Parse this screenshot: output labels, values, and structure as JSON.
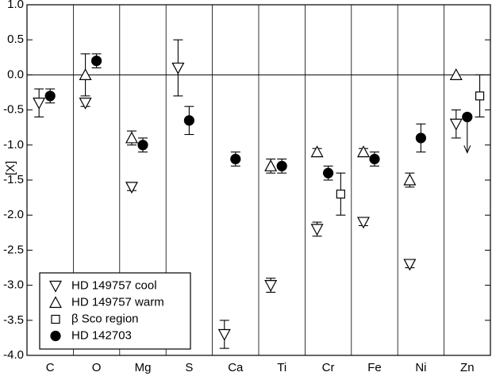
{
  "chart_data": {
    "type": "errorbar",
    "ylabel": "[X]",
    "categories": [
      "C",
      "O",
      "Mg",
      "S",
      "Ca",
      "Ti",
      "Cr",
      "Fe",
      "Ni",
      "Zn"
    ],
    "ylim": [
      -4,
      1
    ],
    "yticks": [
      {
        "value": 1,
        "label": "1.0"
      },
      0.5,
      {
        "value": 0,
        "label": "0.0"
      },
      -0.5,
      {
        "value": -1,
        "label": "-1.0"
      },
      -1.5,
      {
        "value": -2,
        "label": "-2.0"
      },
      -2.5,
      {
        "value": -3,
        "label": "-3.0"
      },
      -3.5,
      {
        "value": -4,
        "label": "-4.0"
      }
    ],
    "zero_line": true,
    "legend": "lower left",
    "series": [
      {
        "name": "HD 149757 cool",
        "marker": "triangle-down",
        "filled": false,
        "offset": -0.24,
        "values": [
          -0.4,
          -0.4,
          -1.6,
          0.1,
          -3.7,
          -3.0,
          -2.2,
          -2.1,
          -2.7,
          -0.7
        ],
        "errors": [
          0.2,
          0.05,
          0.05,
          0.4,
          0.2,
          0.1,
          0.1,
          0.05,
          0.05,
          0.2
        ]
      },
      {
        "name": "HD 149757 warm",
        "marker": "triangle-up",
        "filled": false,
        "offset": -0.24,
        "values": [
          null,
          0.0,
          -0.9,
          null,
          null,
          -1.3,
          -1.1,
          -1.1,
          -1.5,
          0.0
        ],
        "errors": [
          null,
          0.3,
          0.1,
          null,
          null,
          0.1,
          0.05,
          0.05,
          0.1,
          null
        ]
      },
      {
        "name": "β Sco region",
        "marker": "square",
        "filled": false,
        "offset": 0.27,
        "values": [
          null,
          null,
          null,
          null,
          null,
          null,
          -1.7,
          null,
          null,
          -0.3
        ],
        "errors": [
          null,
          null,
          null,
          null,
          null,
          null,
          0.3,
          null,
          null,
          0.3
        ]
      },
      {
        "name": "HD 142703",
        "marker": "circle",
        "filled": true,
        "offset": 0.0,
        "values": [
          -0.3,
          0.2,
          -1.0,
          -0.65,
          -1.2,
          -1.3,
          -1.4,
          -1.2,
          -0.9,
          -0.6
        ],
        "errors": [
          0.1,
          0.1,
          0.1,
          0.2,
          0.1,
          0.1,
          0.1,
          0.1,
          0.2,
          null
        ],
        "upper_limits": [
          false,
          false,
          false,
          false,
          false,
          false,
          false,
          false,
          false,
          true
        ]
      }
    ]
  }
}
